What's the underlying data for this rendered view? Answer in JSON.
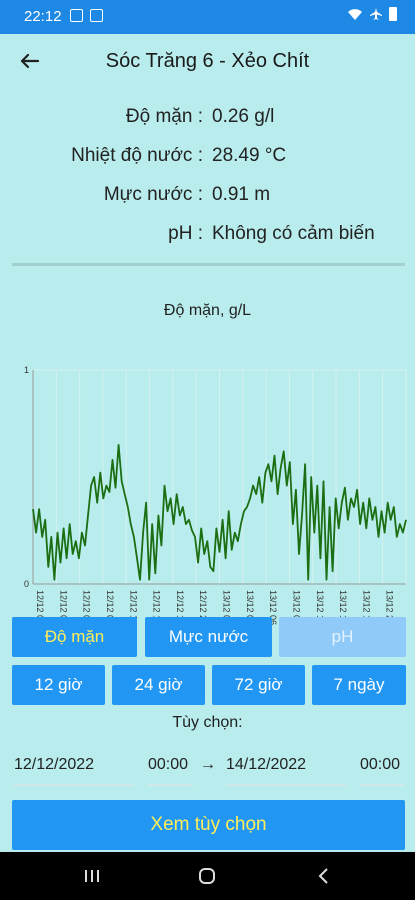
{
  "status": {
    "time": "22:12"
  },
  "header": {
    "title": "Sóc Trăng 6 - Xẻo Chít"
  },
  "readings": [
    {
      "label": "Độ mặn :",
      "value": "0.26 g/l"
    },
    {
      "label": "Nhiệt độ nước :",
      "value": "28.49 °C"
    },
    {
      "label": "Mực nước :",
      "value": "0.91 m"
    },
    {
      "label": "pH :",
      "value": "Không có cảm biến"
    }
  ],
  "chart_data": {
    "type": "line",
    "title": "Độ mặn, g/L",
    "ylim": [
      0,
      1
    ],
    "y_ticks": [
      "0",
      "1"
    ],
    "x_tick_labels": [
      "12/12 00",
      "12/12 03",
      "12/12 06",
      "12/12 09",
      "12/12 12",
      "12/12 15",
      "12/12 18",
      "12/12 21",
      "13/12 00",
      "13/12 03",
      "13/12 06",
      "13/12 09",
      "13/12 12",
      "13/12 15",
      "13/12 18",
      "13/12 21",
      "14/12 00"
    ],
    "color": "#1b6e12",
    "values": [
      0.35,
      0.24,
      0.35,
      0.22,
      0.3,
      0.08,
      0.22,
      0.02,
      0.24,
      0.1,
      0.26,
      0.12,
      0.28,
      0.14,
      0.2,
      0.12,
      0.24,
      0.18,
      0.32,
      0.46,
      0.5,
      0.38,
      0.52,
      0.4,
      0.46,
      0.43,
      0.58,
      0.45,
      0.65,
      0.48,
      0.42,
      0.36,
      0.28,
      0.22,
      0.12,
      0.02,
      0.24,
      0.38,
      0.02,
      0.28,
      0.05,
      0.32,
      0.18,
      0.46,
      0.34,
      0.4,
      0.28,
      0.42,
      0.32,
      0.36,
      0.28,
      0.3,
      0.25,
      0.22,
      0.1,
      0.26,
      0.14,
      0.2,
      0.08,
      0.06,
      0.26,
      0.15,
      0.3,
      0.12,
      0.34,
      0.16,
      0.24,
      0.2,
      0.28,
      0.34,
      0.36,
      0.4,
      0.46,
      0.42,
      0.5,
      0.38,
      0.52,
      0.56,
      0.48,
      0.6,
      0.42,
      0.54,
      0.62,
      0.46,
      0.57,
      0.28,
      0.44,
      0.14,
      0.32,
      0.56,
      0.02,
      0.5,
      0.24,
      0.46,
      0.12,
      0.48,
      0.02,
      0.36,
      0.06,
      0.4,
      0.26,
      0.38,
      0.45,
      0.3,
      0.4,
      0.36,
      0.44,
      0.28,
      0.38,
      0.26,
      0.4,
      0.3,
      0.36,
      0.22,
      0.34,
      0.24,
      0.38,
      0.3,
      0.36,
      0.22,
      0.28,
      0.24,
      0.3
    ]
  },
  "param_tabs": [
    {
      "label": "Độ mặn",
      "state": "active"
    },
    {
      "label": "Mực nước",
      "state": "normal"
    },
    {
      "label": "pH",
      "state": "disabled"
    }
  ],
  "ranges": [
    "12 giờ",
    "24 giờ",
    "72 giờ",
    "7 ngày"
  ],
  "custom": {
    "label": "Tùy chọn:",
    "start_date": "12/12/2022",
    "start_time": "00:00",
    "arrow": "→",
    "end_date": "14/12/2022",
    "end_time": "00:00",
    "view_button": "Xem tùy chọn"
  }
}
